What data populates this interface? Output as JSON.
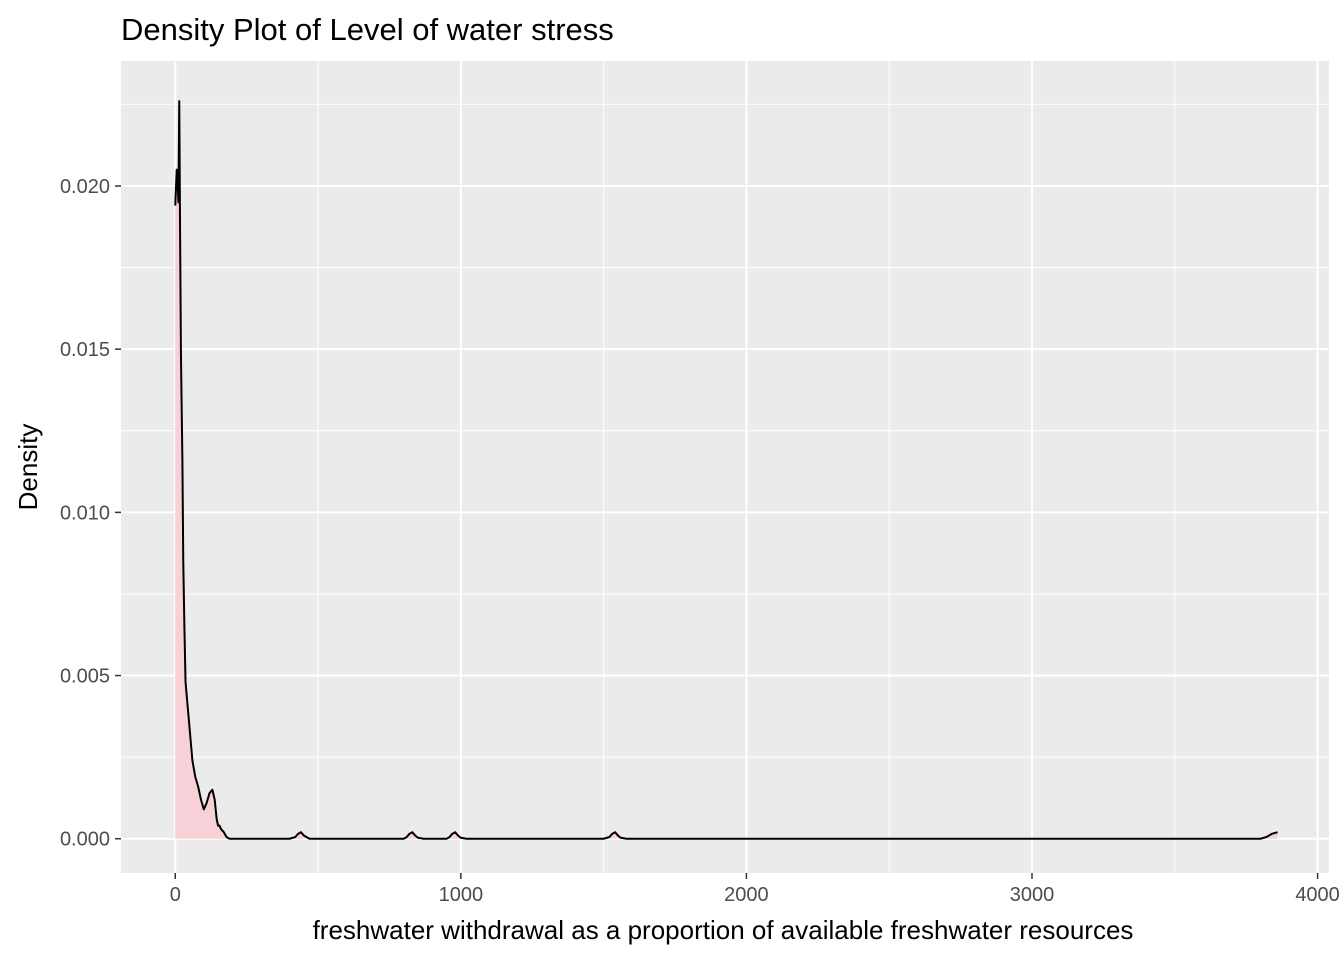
{
  "chart_data": {
    "type": "area",
    "title": "Density Plot of Level of water stress",
    "xlabel": "freshwater withdrawal as a proportion of available freshwater resources",
    "ylabel": "Density",
    "xlim": [
      -190,
      4040
    ],
    "ylim": [
      -0.00105,
      0.02383
    ],
    "x_ticks": [
      0,
      1000,
      2000,
      3000,
      4000
    ],
    "x_tick_labels": [
      "0",
      "1000",
      "2000",
      "3000",
      "4000"
    ],
    "y_ticks": [
      0.0,
      0.005,
      0.01,
      0.015,
      0.02
    ],
    "y_tick_labels": [
      "0.000",
      "0.005",
      "0.010",
      "0.015",
      "0.020"
    ],
    "grid": true,
    "legend": "none",
    "colors": {
      "panel_background": "#ebebeb",
      "grid_line": "#ffffff",
      "fill": "#f8d0d8",
      "line": "#000000",
      "tick_label": "#4d4d4d"
    },
    "series": [
      {
        "x": [
          0,
          5,
          8,
          11,
          14,
          17,
          20,
          22,
          25,
          28,
          32,
          36,
          42,
          50,
          60,
          70,
          80,
          90,
          100,
          110,
          120,
          130,
          138,
          145,
          150,
          155,
          160,
          170,
          180,
          190,
          200,
          220,
          300,
          400,
          420,
          430,
          440,
          450,
          470,
          500,
          800,
          810,
          820,
          830,
          840,
          850,
          870,
          900,
          950,
          960,
          970,
          980,
          990,
          1000,
          1020,
          1500,
          1520,
          1530,
          1540,
          1550,
          1560,
          1580,
          1600,
          2000,
          3000,
          3800,
          3820,
          3840,
          3860
        ],
        "y": [
          0.0194,
          0.0205,
          0.0202,
          0.0195,
          0.0226,
          0.0185,
          0.0148,
          0.0135,
          0.0116,
          0.0085,
          0.0065,
          0.0048,
          0.0042,
          0.0034,
          0.0024,
          0.0019,
          0.0016,
          0.0012,
          0.0009,
          0.0011,
          0.0014,
          0.0015,
          0.0012,
          0.0006,
          0.0004,
          0.0004,
          0.0003,
          0.0002,
          5e-05,
          0.0,
          0.0,
          0.0,
          0.0,
          0.0,
          5e-05,
          0.00015,
          0.0002,
          0.0001,
          0.0,
          0.0,
          0.0,
          5e-05,
          0.00015,
          0.0002,
          0.0001,
          3e-05,
          0.0,
          0.0,
          0.0,
          5e-05,
          0.00015,
          0.0002,
          0.0001,
          3e-05,
          0.0,
          0.0,
          5e-05,
          0.00015,
          0.0002,
          0.0001,
          3e-05,
          0.0,
          0.0,
          0.0,
          0.0,
          0.0,
          5e-05,
          0.00015,
          0.0002
        ]
      }
    ]
  }
}
